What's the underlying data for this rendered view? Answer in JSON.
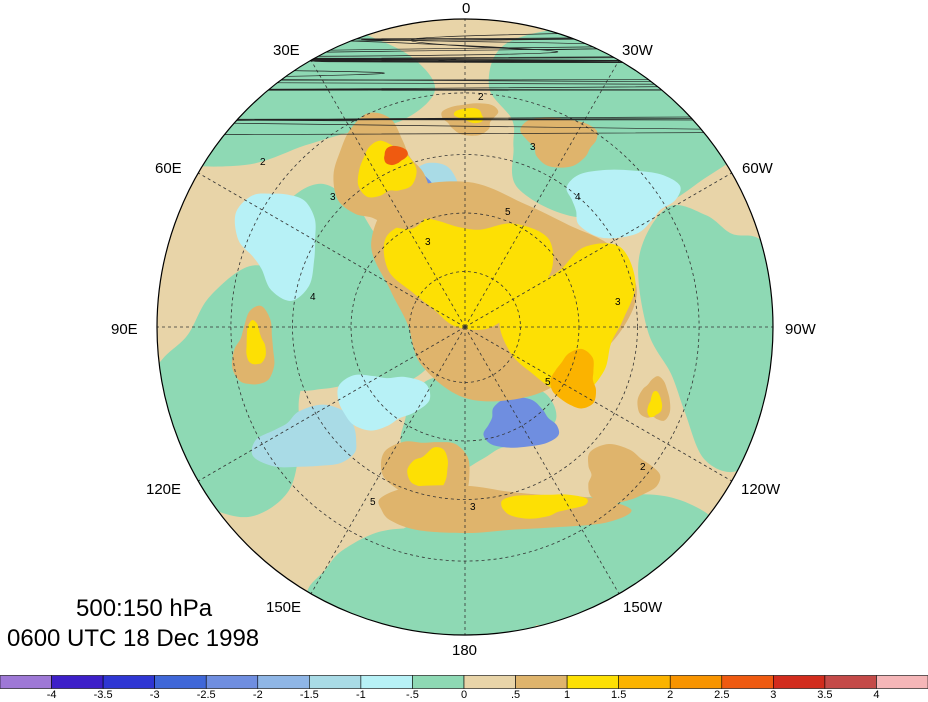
{
  "figure": {
    "level_label": "500:150 hPa",
    "time_label": "0600 UTC 18 Dec 1998"
  },
  "longitude_labels": [
    "0",
    "30W",
    "60W",
    "90W",
    "120W",
    "150W",
    "180",
    "150E",
    "120E",
    "90E",
    "60E",
    "30E"
  ],
  "colorbar": {
    "ticks": [
      "-4",
      "-3.5",
      "-3",
      "-2.5",
      "-2",
      "-1.5",
      "-1",
      "-.5",
      "0",
      ".5",
      "1",
      "1.5",
      "2",
      "2.5",
      "3",
      "3.5",
      "4"
    ],
    "colors": [
      "#9e78d6",
      "#3d1fc8",
      "#2f36d3",
      "#3f67d8",
      "#6f8ee0",
      "#8fb6e6",
      "#a9dbe6",
      "#b7f1f6",
      "#8ed9b4",
      "#e8d4a8",
      "#dfb46c",
      "#fde004",
      "#fbb300",
      "#f89400",
      "#ef5a10",
      "#d22c1d",
      "#c44a48",
      "#f5b6b8"
    ]
  },
  "map_colors": {
    "neutral_neg": "#8ed9b4",
    "neutral_pos": "#e8d4a8",
    "mid_pos": "#dfb46c",
    "strong_pos": "#fde004",
    "stronger_pos": "#fbb300",
    "peak_pos": "#ef5a10",
    "weak_neg": "#b7f1f6",
    "mid_neg": "#a9dbe6",
    "strong_neg": "#6f8ee0",
    "peak_neg": "#3f67d8"
  },
  "contour_labels": [
    "2",
    "3",
    "4",
    "5",
    "3",
    "2",
    "3",
    "5",
    "4",
    "3",
    "2",
    "3",
    "5"
  ]
}
